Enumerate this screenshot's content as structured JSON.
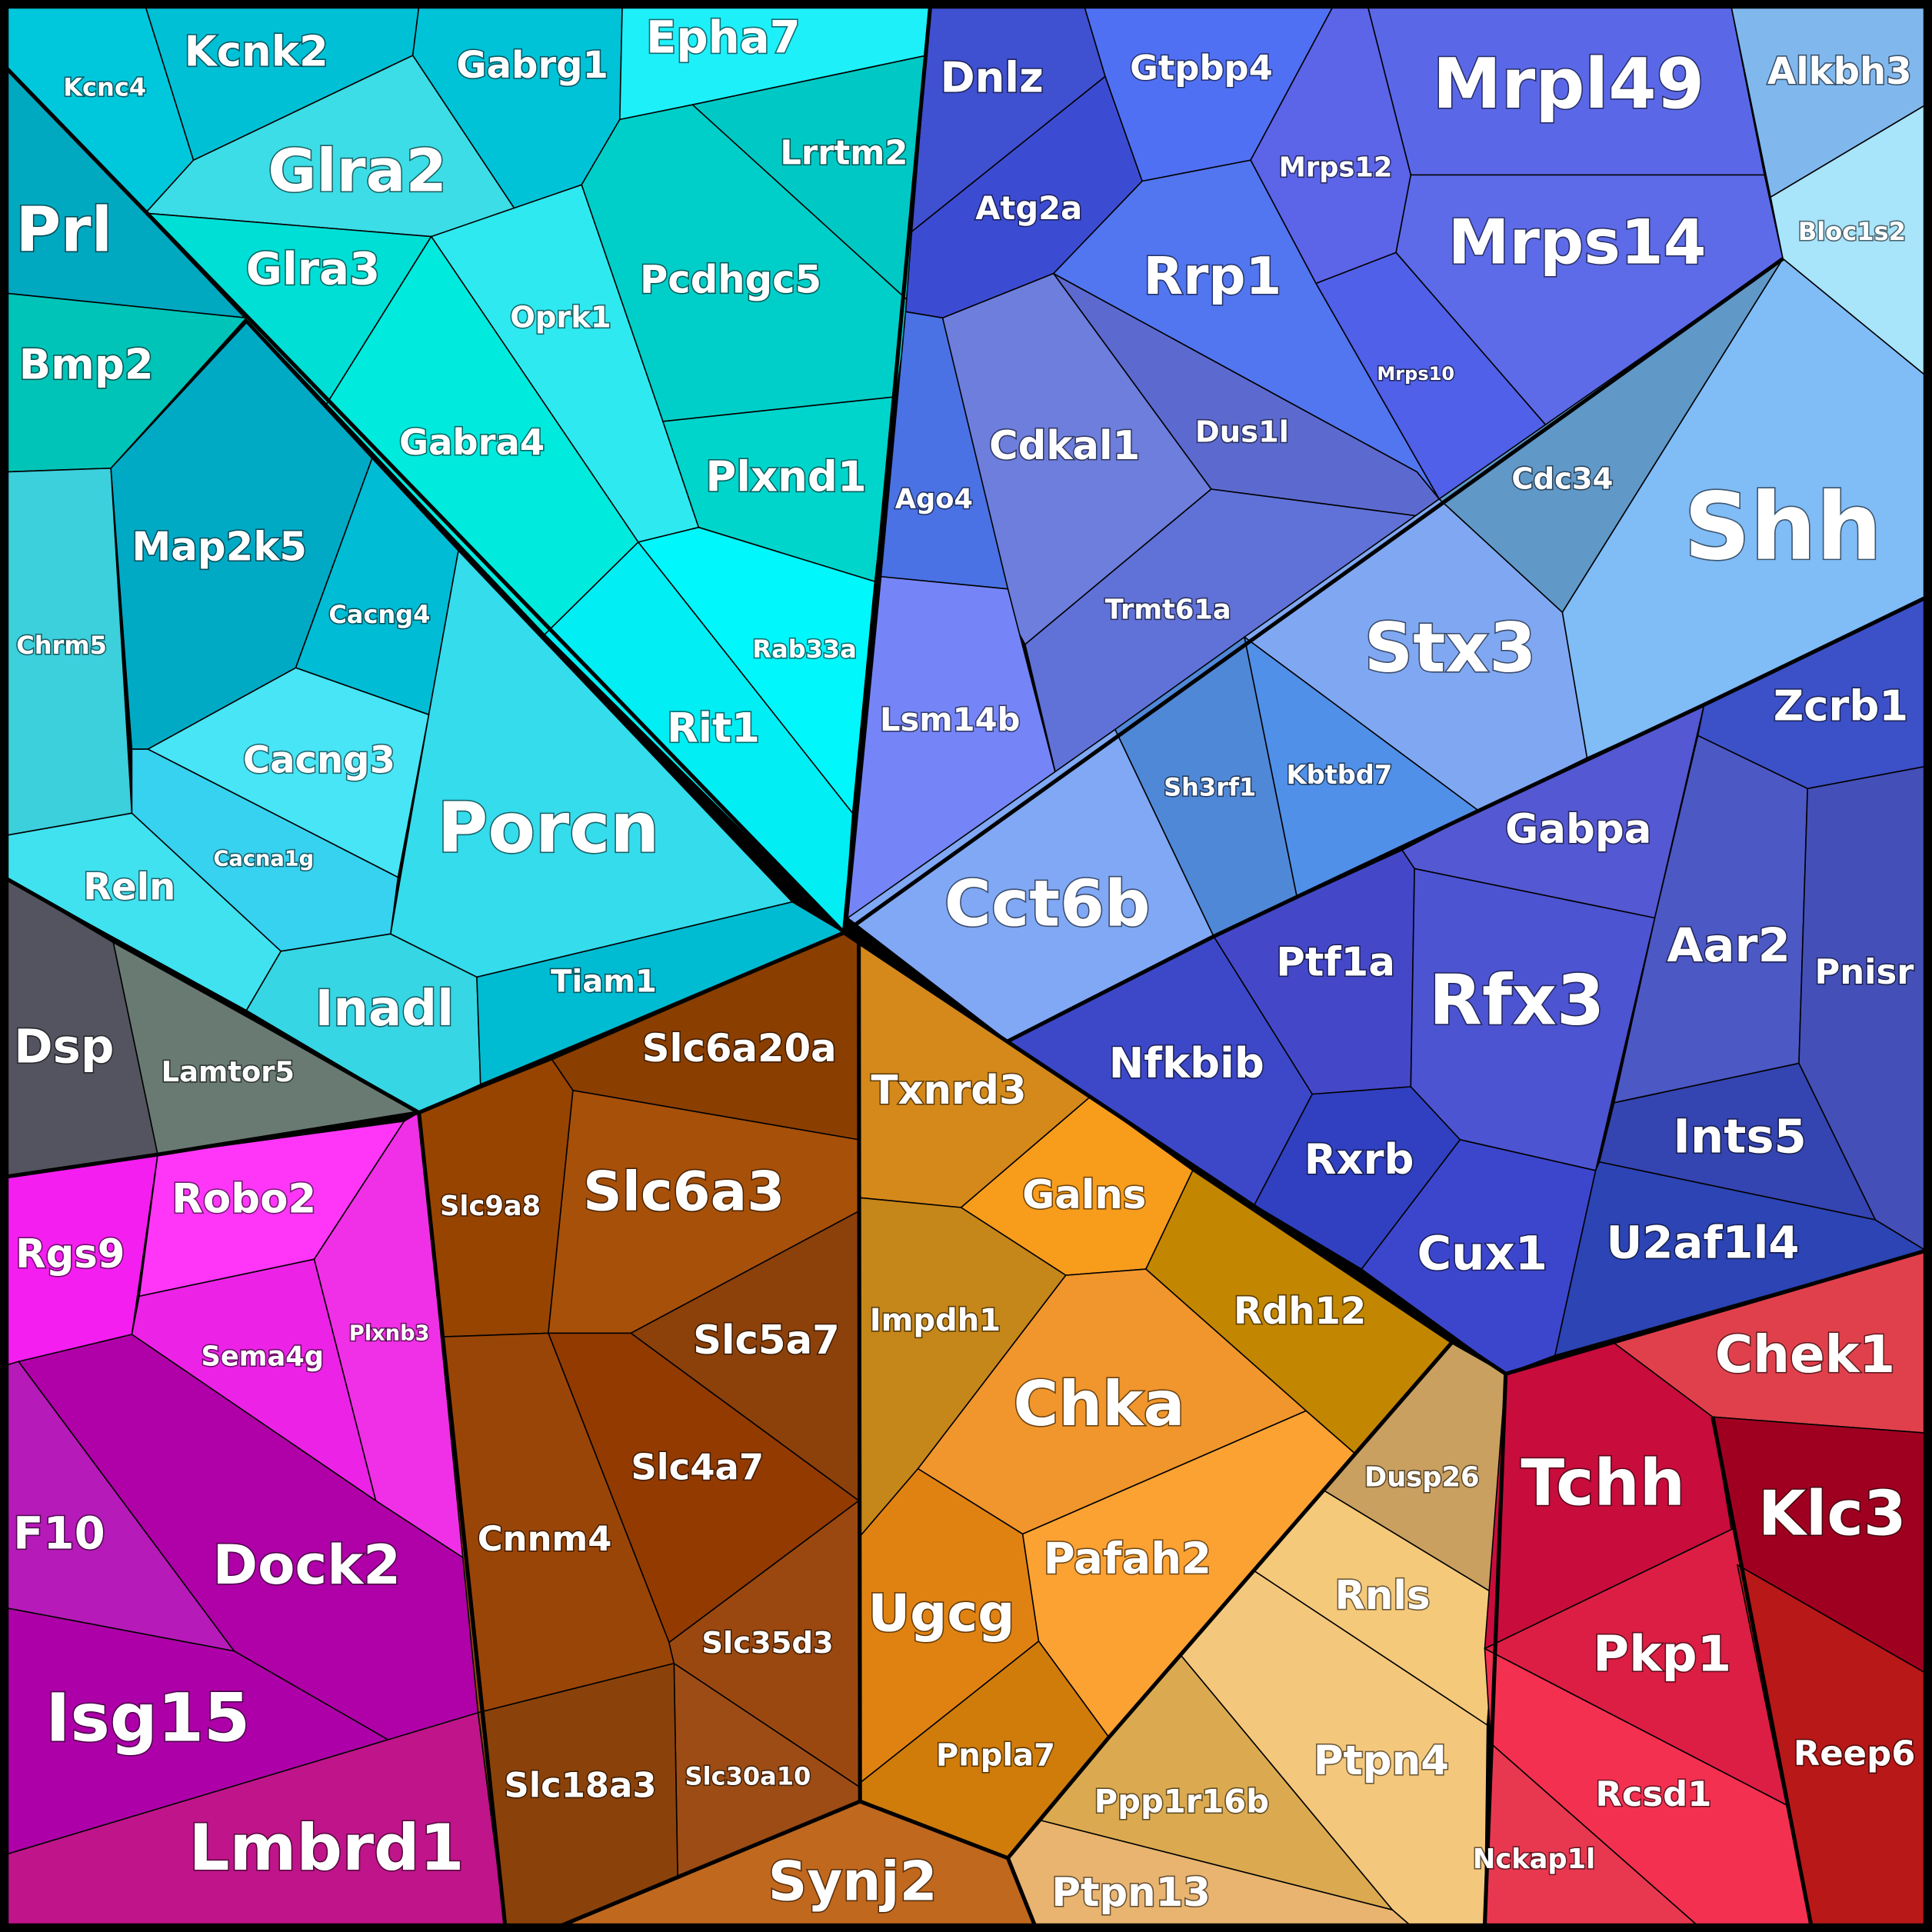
{
  "cells": [
    {
      "label": "Kcnc4",
      "color": "#00c8dc"
    },
    {
      "label": "Kcnk2",
      "color": "#00c0d6"
    },
    {
      "label": "Gabrg1",
      "color": "#00c3d8"
    },
    {
      "label": "Epha7",
      "color": "#1ef0fa"
    },
    {
      "label": "Glra2",
      "color": "#3cdde6"
    },
    {
      "label": "Lrrtm2",
      "color": "#00c9c5"
    },
    {
      "label": "Pcdhgc5",
      "color": "#00cfc9"
    },
    {
      "label": "Prl",
      "color": "#00a8c0"
    },
    {
      "label": "Glra3",
      "color": "#00dfd5"
    },
    {
      "label": "Bmp2",
      "color": "#00c4b8"
    },
    {
      "label": "Oprk1",
      "color": "#2eeaf0"
    },
    {
      "label": "Gabra4",
      "color": "#00eadd"
    },
    {
      "label": "Plxnd1",
      "color": "#00d5cc"
    },
    {
      "label": "Map2k5",
      "color": "#00aac5"
    },
    {
      "label": "Cacng4",
      "color": "#00bcd5"
    },
    {
      "label": "Chrm5",
      "color": "#3ccfdc"
    },
    {
      "label": "Porcn",
      "color": "#35dcec"
    },
    {
      "label": "Rit1",
      "color": "#00eef4"
    },
    {
      "label": "Rab33a",
      "color": "#00f7fb"
    },
    {
      "label": "Cacng3",
      "color": "#47e5f5"
    },
    {
      "label": "Cacna1g",
      "color": "#36d2f0"
    },
    {
      "label": "Reln",
      "color": "#40e2f0"
    },
    {
      "label": "Inadl",
      "color": "#36d6e4"
    },
    {
      "label": "Tiam1",
      "color": "#00bcd2"
    },
    {
      "label": "Dsp",
      "color": "#545460"
    },
    {
      "label": "Lamtor5",
      "color": "#697a72"
    },
    {
      "label": "Rgs9",
      "color": "#f51ef0"
    },
    {
      "label": "Robo2",
      "color": "#ff36f8"
    },
    {
      "label": "Plxnb3",
      "color": "#f030e6"
    },
    {
      "label": "Sema4g",
      "color": "#ec22e6"
    },
    {
      "label": "Dock2",
      "color": "#b000a8"
    },
    {
      "label": "F10",
      "color": "#b61ab8"
    },
    {
      "label": "Isg15",
      "color": "#ae00a8"
    },
    {
      "label": "Lmbrd1",
      "color": "#c0148a"
    },
    {
      "label": "Slc6a20a",
      "color": "#8a3e00"
    },
    {
      "label": "Slc9a8",
      "color": "#974400"
    },
    {
      "label": "Slc6a3",
      "color": "#a7500a"
    },
    {
      "label": "Slc5a7",
      "color": "#8c400a"
    },
    {
      "label": "Slc4a7",
      "color": "#923a00"
    },
    {
      "label": "Cnnm4",
      "color": "#9a4508"
    },
    {
      "label": "Slc35d3",
      "color": "#9a4810"
    },
    {
      "label": "Slc30a10",
      "color": "#9c4c14"
    },
    {
      "label": "Slc18a3",
      "color": "#8a420a"
    },
    {
      "label": "Synj2",
      "color": "#c0681e"
    },
    {
      "label": "Txnrd3",
      "color": "#d4891a"
    },
    {
      "label": "Galns",
      "color": "#f89c1c"
    },
    {
      "label": "Rdh12",
      "color": "#c38600"
    },
    {
      "label": "Impdh1",
      "color": "#c5861a"
    },
    {
      "label": "Chka",
      "color": "#f0962c"
    },
    {
      "label": "Ugcg",
      "color": "#e08212"
    },
    {
      "label": "Pafah2",
      "color": "#fca232"
    },
    {
      "label": "Pnpla7",
      "color": "#d07c0a"
    },
    {
      "label": "Dusp26",
      "color": "#c9a060"
    },
    {
      "label": "Rnls",
      "color": "#f4c97a"
    },
    {
      "label": "Ptpn4",
      "color": "#f4c87c"
    },
    {
      "label": "Ppp1r16b",
      "color": "#dbaa50"
    },
    {
      "label": "Ptpn13",
      "color": "#e8b470"
    },
    {
      "label": "Dnlz",
      "color": "#3f50d0"
    },
    {
      "label": "Atg2a",
      "color": "#3c4cd2"
    },
    {
      "label": "Gtpbp4",
      "color": "#5070f4"
    },
    {
      "label": "Mrpl49",
      "color": "#5a68e8"
    },
    {
      "label": "Mrps12",
      "color": "#5c64e8"
    },
    {
      "label": "Mrps14",
      "color": "#5d6be8"
    },
    {
      "label": "Mrps10",
      "color": "#5060e8"
    },
    {
      "label": "Rrp1",
      "color": "#5275f0"
    },
    {
      "label": "Dus1l",
      "color": "#5c6ad0"
    },
    {
      "label": "Cdkal1",
      "color": "#6e7edd"
    },
    {
      "label": "Trmt61a",
      "color": "#6072d8"
    },
    {
      "label": "Ago4",
      "color": "#4a72e4"
    },
    {
      "label": "Lsm14b",
      "color": "#7585f7"
    },
    {
      "label": "Alkbh3",
      "color": "#80b8ee"
    },
    {
      "label": "Bloc1s2",
      "color": "#a8e4fa"
    },
    {
      "label": "Cdc34",
      "color": "#6098c8"
    },
    {
      "label": "Shh",
      "color": "#80bcf6"
    },
    {
      "label": "Stx3",
      "color": "#80a8f2"
    },
    {
      "label": "Sh3rf1",
      "color": "#5088d8"
    },
    {
      "label": "Kbtbd7",
      "color": "#5090e8"
    },
    {
      "label": "Cct6b",
      "color": "#80a8f4"
    },
    {
      "label": "Zcrb1",
      "color": "#3c50c8"
    },
    {
      "label": "Gabpa",
      "color": "#5458d2"
    },
    {
      "label": "Aar2",
      "color": "#4c58c4"
    },
    {
      "label": "Pnisr",
      "color": "#4450b8"
    },
    {
      "label": "Ptf1a",
      "color": "#4448c8"
    },
    {
      "label": "Rfx3",
      "color": "#4c54d2"
    },
    {
      "label": "Nfkbib",
      "color": "#3c48c8"
    },
    {
      "label": "Rxrb",
      "color": "#3040c0"
    },
    {
      "label": "Cux1",
      "color": "#3c46cc"
    },
    {
      "label": "Ints5",
      "color": "#3444b0"
    },
    {
      "label": "U2af1l4",
      "color": "#2c44b4"
    },
    {
      "label": "Chek1",
      "color": "#e0404c"
    },
    {
      "label": "Tchh",
      "color": "#c80c3c"
    },
    {
      "label": "Klc3",
      "color": "#a00020"
    },
    {
      "label": "Pkp1",
      "color": "#dc1e44"
    },
    {
      "label": "Reep6",
      "color": "#b81818"
    },
    {
      "label": "Rcsd1",
      "color": "#f43050"
    },
    {
      "label": "Nckap1l",
      "color": "#e83850"
    }
  ]
}
